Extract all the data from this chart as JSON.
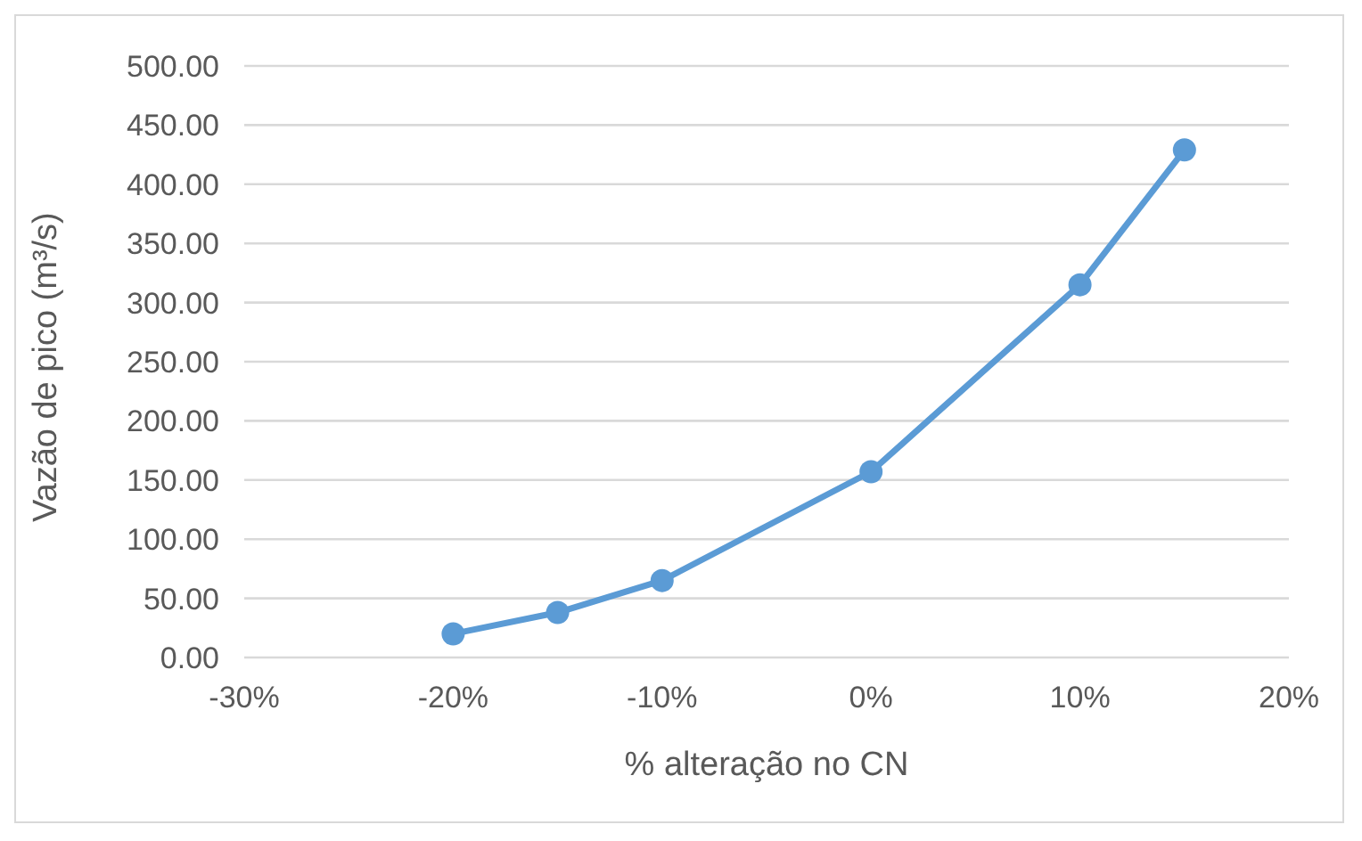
{
  "chart_data": {
    "type": "line",
    "xlabel": "% alteração no CN",
    "ylabel": "Vazão de pico (m³/s)",
    "x": [
      -20,
      -15,
      -10,
      0,
      10,
      15
    ],
    "series": [
      {
        "color": "#5b9bd5",
        "values": [
          20,
          38,
          65,
          157,
          315,
          429
        ]
      }
    ],
    "xlim": [
      -30,
      20
    ],
    "xticks": [
      {
        "value": -30,
        "label": "-30%"
      },
      {
        "value": -20,
        "label": "-20%"
      },
      {
        "value": -10,
        "label": "-10%"
      },
      {
        "value": 0,
        "label": "0%"
      },
      {
        "value": 10,
        "label": "10%"
      },
      {
        "value": 20,
        "label": "20%"
      }
    ],
    "ylim": [
      0,
      500
    ],
    "yticks": [
      {
        "value": 0,
        "label": "0.00"
      },
      {
        "value": 50,
        "label": "50.00"
      },
      {
        "value": 100,
        "label": "100.00"
      },
      {
        "value": 150,
        "label": "150.00"
      },
      {
        "value": 200,
        "label": "200.00"
      },
      {
        "value": 250,
        "label": "250.00"
      },
      {
        "value": 300,
        "label": "300.00"
      },
      {
        "value": 350,
        "label": "350.00"
      },
      {
        "value": 400,
        "label": "400.00"
      },
      {
        "value": 450,
        "label": "450.00"
      },
      {
        "value": 500,
        "label": "500.00"
      }
    ],
    "grid": "y",
    "marker": "circle",
    "line_style": "solid",
    "legend": false
  }
}
